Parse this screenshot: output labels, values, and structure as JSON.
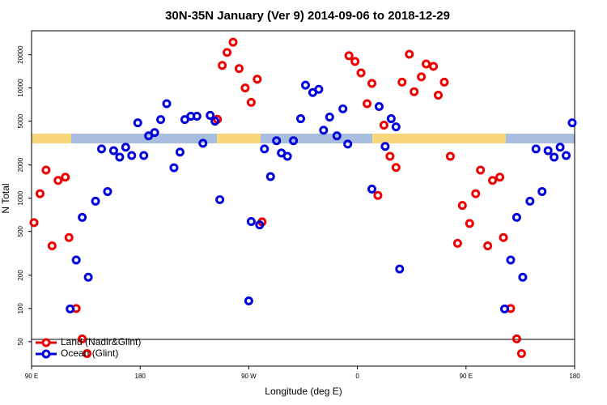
{
  "chart_data": {
    "type": "scatter",
    "title": "30N-35N January (Ver 9)   2014-09-06 to 2018-12-29",
    "x_label": "Longitude (deg E)",
    "y_label": "N Total",
    "xlim": [
      90,
      540
    ],
    "xticks": [
      {
        "value": 90,
        "label": "90 E"
      },
      180,
      {
        "value": 270,
        "label": "90 W"
      },
      {
        "value": 360,
        "label": "0"
      },
      {
        "value": 450,
        "label": "90 E"
      },
      {
        "value": 540,
        "label": "180"
      }
    ],
    "ylim": [
      30,
      33000
    ],
    "yticks": [
      50,
      100,
      200,
      500,
      1000,
      2000,
      5000,
      10000,
      20000
    ],
    "log_y": true,
    "legend": "bottom-left",
    "series": [
      {
        "name": "Land (Nadir&Glint)",
        "color": "#ee0000",
        "x": [
          92,
          97,
          102,
          107,
          112,
          118,
          121,
          127,
          132,
          136,
          244,
          248,
          252,
          257,
          262,
          267,
          272,
          277,
          281,
          353,
          358,
          363,
          368,
          372,
          377,
          382,
          387,
          392,
          397,
          403,
          407,
          413,
          417,
          423,
          427,
          432,
          437,
          443,
          447,
          453,
          458,
          462,
          468,
          472,
          478,
          481,
          487,
          492,
          496
        ],
        "values": [
          600,
          1100,
          1800,
          370,
          1450,
          1550,
          440,
          100,
          53,
          39,
          5200,
          16000,
          21000,
          26000,
          15000,
          10000,
          7400,
          12000,
          610,
          19600,
          17400,
          13700,
          7200,
          11000,
          1060,
          4600,
          2400,
          1900,
          11300,
          20200,
          9250,
          12600,
          16500,
          15700,
          8600,
          11300,
          2400,
          390,
          860,
          590,
          1100,
          1800,
          370,
          1450,
          1550,
          440,
          100,
          53,
          39
        ]
      },
      {
        "name": "Ocean (Glint)",
        "color": "#0000dd",
        "x": [
          122,
          127,
          132,
          137,
          143,
          148,
          153,
          158,
          163,
          168,
          173,
          178,
          183,
          187,
          192,
          197,
          202,
          208,
          213,
          217,
          222,
          227,
          232,
          238,
          242,
          246,
          270,
          272,
          279,
          283,
          288,
          293,
          297,
          302,
          307,
          313,
          317,
          323,
          328,
          332,
          337,
          343,
          348,
          352,
          372,
          378,
          383,
          388,
          392,
          395,
          482,
          487,
          492,
          497,
          503,
          508,
          513,
          518,
          523,
          528,
          533,
          538
        ],
        "values": [
          99,
          275,
          670,
          192,
          940,
          2800,
          1150,
          2700,
          2360,
          2900,
          2440,
          4830,
          2440,
          3680,
          3940,
          5170,
          7200,
          1890,
          2620,
          5170,
          5540,
          5540,
          3150,
          5640,
          5000,
          970,
          117,
          614,
          573,
          2800,
          1570,
          3320,
          2570,
          2400,
          3320,
          5260,
          10600,
          9080,
          9720,
          4140,
          5450,
          3680,
          6460,
          3100,
          1210,
          6790,
          2950,
          5260,
          4440,
          228,
          99,
          275,
          670,
          192,
          940,
          2800,
          1150,
          2700,
          2360,
          2900,
          2440,
          4830
        ]
      }
    ]
  }
}
